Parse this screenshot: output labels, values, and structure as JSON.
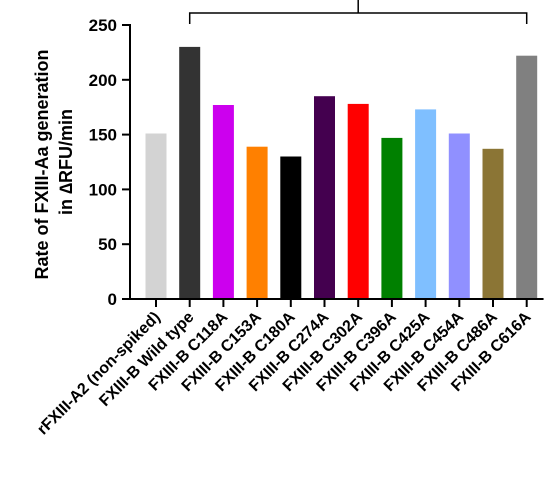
{
  "chart_data": {
    "type": "bar",
    "title": "",
    "xlabel": "",
    "ylabel_line1": "Rate of FXIII-Aa generation",
    "ylabel_line2": "in ∆RFU/min",
    "ylim": [
      0,
      250
    ],
    "yticks": [
      0,
      50,
      100,
      150,
      200,
      250
    ],
    "grid": false,
    "categories": [
      "rFXIII-A2 (non-spiked)",
      "FXIII-B Wild type",
      "FXIII-B C118A",
      "FXIII-B C153A",
      "FXIII-B C180A",
      "FXIII-B C274A",
      "FXIII-B C302A",
      "FXIII-B C396A",
      "FXIII-B C425A",
      "FXIII-B C454A",
      "FXIII-B C486A",
      "FXIII-B C616A"
    ],
    "values": [
      151,
      230,
      177,
      139,
      130,
      185,
      178,
      147,
      173,
      151,
      137,
      222
    ],
    "colors": [
      "#d3d3d3",
      "#333333",
      "#cc00ee",
      "#ff8000",
      "#000000",
      "#44004f",
      "#ff0000",
      "#008000",
      "#7fbfff",
      "#9090ff",
      "#8b7535",
      "#808080"
    ],
    "comparison_bracket": {
      "from_category": 1,
      "to_category": 11
    }
  }
}
